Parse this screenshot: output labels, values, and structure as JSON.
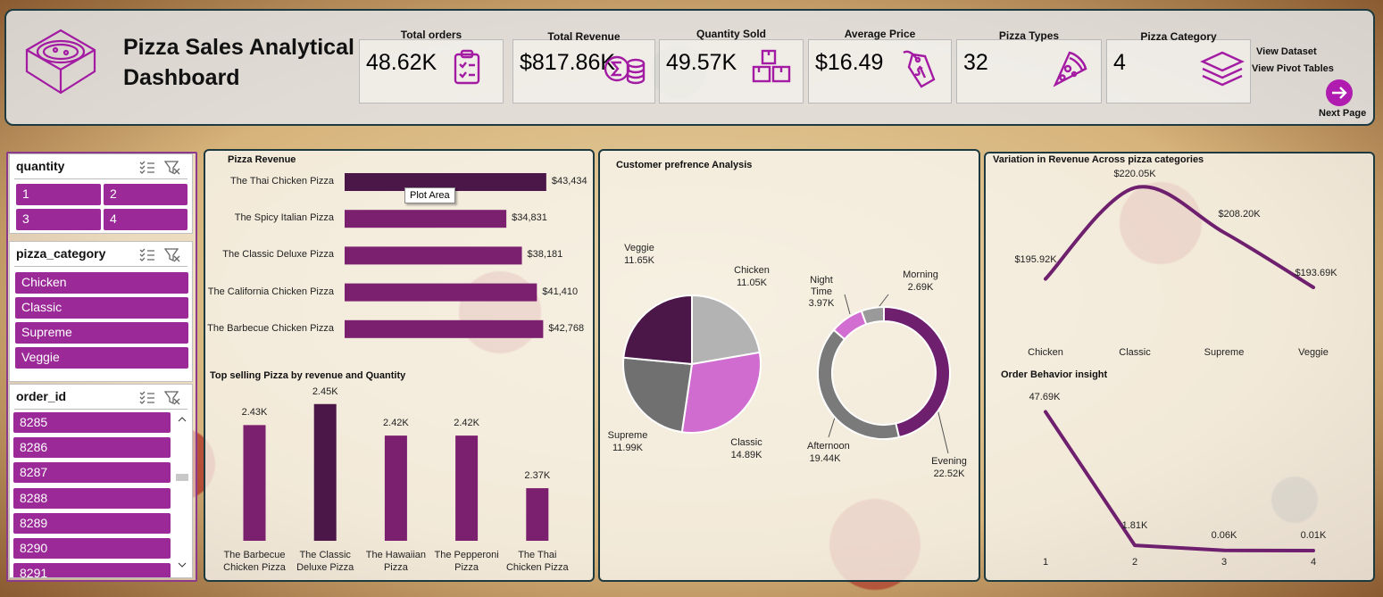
{
  "header": {
    "title": "Pizza Sales Analytical Dashboard"
  },
  "kpis": [
    {
      "label": "Total orders",
      "value": "48.62K"
    },
    {
      "label": "Total Revenue",
      "value": "$817.86K"
    },
    {
      "label": "Quantity Sold",
      "value": "49.57K"
    },
    {
      "label": "Average Price",
      "value": "$16.49"
    },
    {
      "label": "Pizza Types",
      "value": "32"
    },
    {
      "label": "Pizza Category",
      "value": "4"
    }
  ],
  "links": [
    "View Dataset",
    "View Pivot Tables",
    "Next Page"
  ],
  "slicers": [
    {
      "title": "quantity",
      "items": [
        "1",
        "2",
        "3",
        "4"
      ]
    },
    {
      "title": "pizza_category",
      "items": [
        "Chicken",
        "Classic",
        "Supreme",
        "Veggie"
      ]
    },
    {
      "title": "order_id",
      "items": [
        "8285",
        "8286",
        "8287",
        "8288",
        "8289",
        "8290",
        "8291"
      ]
    }
  ],
  "tooltip": "Plot Area",
  "chart_data": [
    {
      "type": "hbar",
      "title": "Pizza Revenue",
      "categories": [
        "The Thai Chicken Pizza",
        "The Spicy Italian Pizza",
        "The Classic Deluxe Pizza",
        "The California Chicken Pizza",
        "The Barbecue Chicken Pizza"
      ],
      "values": [
        43434,
        34831,
        38181,
        41410,
        42768
      ],
      "value_labels": [
        "$43,434",
        "$34,831",
        "$38,181",
        "$41,410",
        "$42,768"
      ],
      "colors": [
        "#4a1748",
        "#7b1f6f",
        "#7b1f6f",
        "#7b1f6f",
        "#7b1f6f"
      ],
      "xlim": [
        0,
        50000
      ]
    },
    {
      "type": "bar",
      "title": "Top selling Pizza by revenue and Quantity",
      "categories": [
        "The Barbecue Chicken Pizza",
        "The Classic Deluxe Pizza",
        "The Hawaiian Pizza",
        "The Pepperoni Pizza",
        "The Thai Chicken Pizza"
      ],
      "values": [
        2430,
        2450,
        2420,
        2420,
        2370
      ],
      "value_labels": [
        "2.43K",
        "2.45K",
        "2.42K",
        "2.42K",
        "2.37K"
      ],
      "colors": [
        "#7b1f6f",
        "#4a1748",
        "#7b1f6f",
        "#7b1f6f",
        "#7b1f6f"
      ],
      "ylim": [
        2320,
        2460
      ]
    },
    {
      "type": "pie",
      "title": "Customer prefrence Analysis",
      "categories": [
        "Chicken",
        "Classic",
        "Supreme",
        "Veggie"
      ],
      "values": [
        11050,
        14890,
        11990,
        11650
      ],
      "value_labels": [
        "11.05K",
        "14.89K",
        "11.99K",
        "11.65K"
      ],
      "colors": [
        "#b3b3b3",
        "#d06cd0",
        "#707070",
        "#4a1748"
      ]
    },
    {
      "type": "donut",
      "categories": [
        "Evening",
        "Afternoon",
        "Night Time",
        "Morning"
      ],
      "values": [
        22520,
        19440,
        3970,
        2690
      ],
      "value_labels": [
        "22.52K",
        "19.44K",
        "3.97K",
        "2.69K"
      ],
      "colors": [
        "#6e1f6e",
        "#7a7a7a",
        "#d26ed2",
        "#9a9a9a"
      ]
    },
    {
      "type": "line",
      "title": "Variation in Revenue Across pizza categories",
      "categories": [
        "Chicken",
        "Classic",
        "Supreme",
        "Veggie"
      ],
      "values": [
        195920,
        220050,
        208200,
        193690
      ],
      "value_labels": [
        "$195.92K",
        "$220.05K",
        "$208.20K",
        "$193.69K"
      ],
      "color": "#6e1f6e",
      "ylim": [
        180000,
        222500
      ]
    },
    {
      "type": "line",
      "title": "Order Behavior insight",
      "x": [
        1,
        2,
        3,
        4
      ],
      "xlim": [
        0.5,
        4.5
      ],
      "xticks": [
        1,
        2,
        3,
        4
      ],
      "values": [
        47690,
        1810,
        60,
        10
      ],
      "value_labels": [
        "47.69K",
        "1.81K",
        "0.06K",
        "0.01K"
      ],
      "color": "#6e1f6e",
      "ylim": [
        0,
        50000
      ]
    }
  ]
}
